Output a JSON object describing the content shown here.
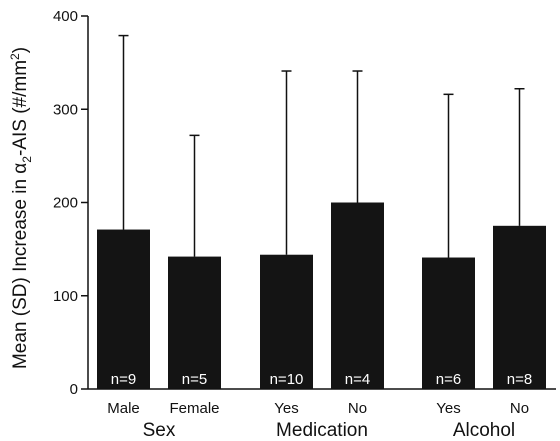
{
  "chart_data": {
    "type": "bar",
    "ylabel": {
      "prefix": "Mean (SD) Increase in ",
      "alpha": "α",
      "sub": "2",
      "suffix": "-AIS (#/mm",
      "sup": "2",
      "close": ")"
    },
    "ylim": [
      0,
      400
    ],
    "yticks": [
      0,
      100,
      200,
      300,
      400
    ],
    "groups": [
      {
        "label": "Sex",
        "bars": [
          {
            "category": "Male",
            "value": 171,
            "sd_top": 379,
            "n": "n=9"
          },
          {
            "category": "Female",
            "value": 142,
            "sd_top": 272,
            "n": "n=5"
          }
        ]
      },
      {
        "label": "Medication",
        "bars": [
          {
            "category": "Yes",
            "value": 144,
            "sd_top": 341,
            "n": "n=10"
          },
          {
            "category": "No",
            "value": 200,
            "sd_top": 341,
            "n": "n=4"
          }
        ]
      },
      {
        "label": "Alcohol",
        "bars": [
          {
            "category": "Yes",
            "value": 141,
            "sd_top": 316,
            "n": "n=6"
          },
          {
            "category": "No",
            "value": 175,
            "sd_top": 322,
            "n": "n=8"
          }
        ]
      }
    ],
    "bar_color": "#141414",
    "grid": false
  }
}
